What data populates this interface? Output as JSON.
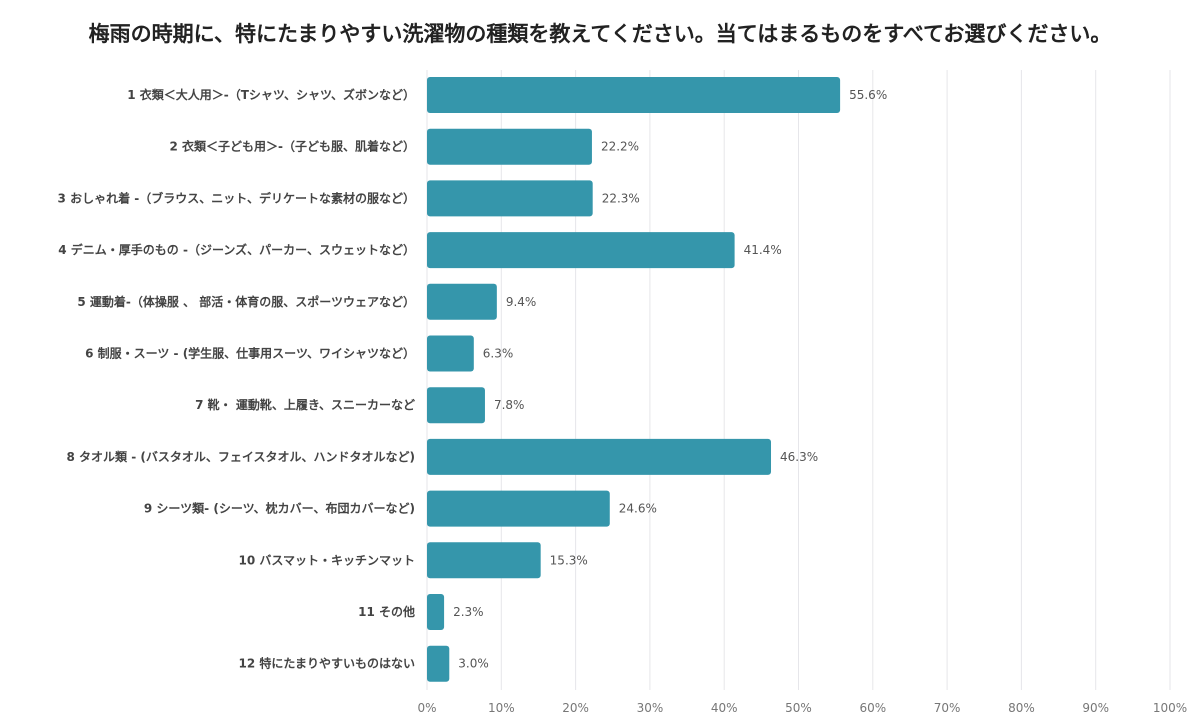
{
  "chart_data": {
    "type": "bar",
    "orientation": "horizontal",
    "title": "梅雨の時期に、特にたまりやすい洗濯物の種類を教えてください。当てはまるものをすべてお選びください。",
    "categories": [
      "1 衣類＜大人用＞-（Tシャツ、シャツ、ズボンなど）",
      "2 衣類＜子ども用＞-（子ども服、肌着など）",
      "3 おしゃれ着 -（ブラウス、ニット、デリケートな素材の服など）",
      "4 デニム・厚手のもの -（ジーンズ、パーカー、スウェットなど）",
      "5 運動着-（体操服 、 部活・体育の服、スポーツウェアなど）",
      "6 制服・スーツ - (学生服、仕事用スーツ、ワイシャツなど）",
      "7 靴・ 運動靴、上履き、スニーカーなど",
      "8 タオル類 - (バスタオル、フェイスタオル、ハンドタオルなど)",
      "9 シーツ類- (シーツ、枕カバー、布団カバーなど)",
      "10 バスマット・キッチンマット",
      "11 その他",
      "12 特にたまりやすいものはない"
    ],
    "values": [
      55.6,
      22.2,
      22.3,
      41.4,
      9.4,
      6.3,
      7.8,
      46.3,
      24.6,
      15.3,
      2.3,
      3.0
    ],
    "value_labels": [
      "55.6%",
      "22.2%",
      "22.3%",
      "41.4%",
      "9.4%",
      "6.3%",
      "7.8%",
      "46.3%",
      "24.6%",
      "15.3%",
      "2.3%",
      "3.0%"
    ],
    "xlim": [
      0,
      100
    ],
    "x_ticks": [
      "0%",
      "10%",
      "20%",
      "30%",
      "40%",
      "50%",
      "60%",
      "70%",
      "80%",
      "90%",
      "100%"
    ],
    "grid": true,
    "bar_color": "#3596ab",
    "grid_color": "#e6e6ea"
  }
}
